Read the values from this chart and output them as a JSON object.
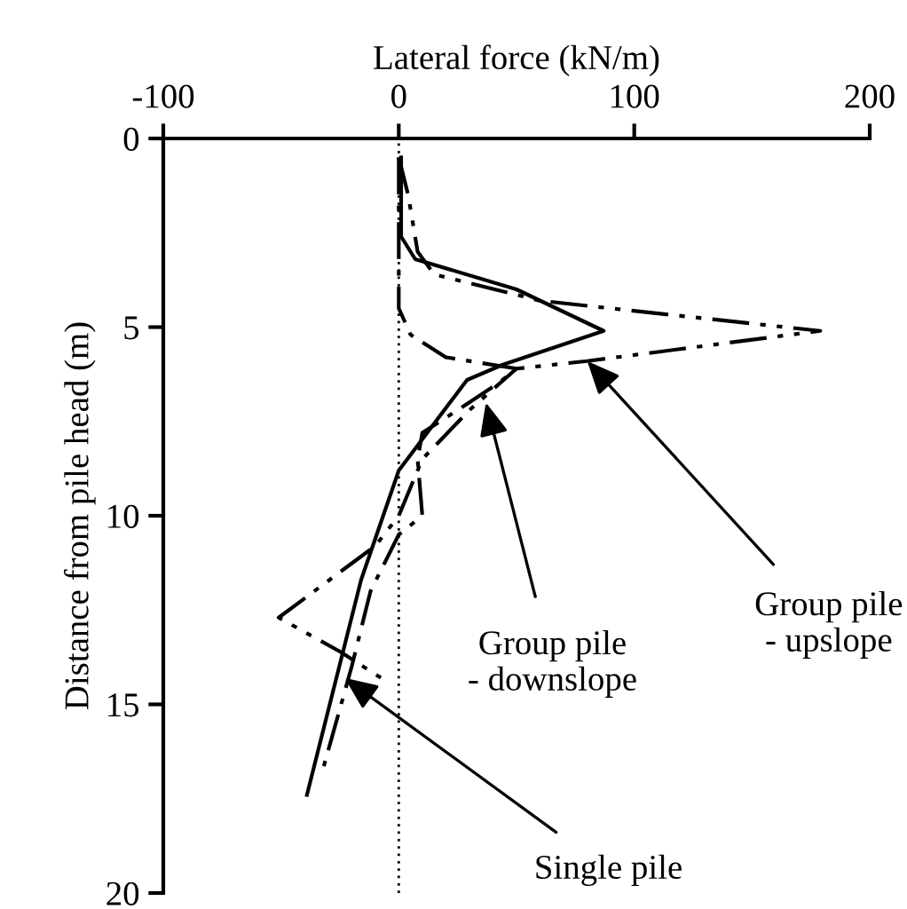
{
  "chart_data": {
    "type": "line",
    "xlabel": "Lateral force (kN/m)",
    "ylabel": "Distance from pile head (m)",
    "xlim": [
      -100,
      200
    ],
    "xticks": [
      -100,
      0,
      100,
      200
    ],
    "ylim": [
      20,
      0
    ],
    "yticks": [
      0,
      5,
      10,
      15,
      20
    ],
    "grid": false,
    "legend": false,
    "ref_lines": [
      {
        "axis": "x",
        "value": 0,
        "label": null,
        "line_style": "dotted",
        "color": "#000000"
      }
    ],
    "series": [
      {
        "color": "#000000",
        "line_style": "solid",
        "x": [
          1,
          1,
          7,
          50,
          87,
          44,
          29,
          0,
          -16,
          -39
        ],
        "values": [
          0.5,
          2.6,
          3.2,
          4.0,
          5.1,
          6.0,
          6.4,
          8.8,
          11.7,
          17.4
        ]
      },
      {
        "color": "#000000",
        "line_style": "dashdotdot",
        "x": [
          0,
          4,
          8,
          15,
          60,
          179,
          80,
          50,
          30,
          10,
          0,
          -10,
          -51,
          -25,
          -5
        ],
        "values": [
          0.5,
          1.5,
          3,
          3.6,
          4.3,
          5.1,
          5.9,
          6.1,
          7.2,
          8.5,
          10,
          10.8,
          12.7,
          13.6,
          14.4
        ]
      },
      {
        "color": "#000000",
        "line_style": "dashdot",
        "x": [
          0,
          0,
          5,
          20,
          50,
          42,
          25,
          10,
          8,
          10,
          0,
          -12,
          -20,
          -33
        ],
        "values": [
          0.5,
          4.5,
          5.2,
          5.8,
          6.1,
          6.5,
          7.2,
          7.8,
          8.5,
          10,
          10.5,
          12,
          14,
          16.9
        ]
      }
    ],
    "annotations": [
      {
        "text": "Group pile\n- upslope",
        "x": 80,
        "y": 5.9
      },
      {
        "text": "Group pile\n- downslope",
        "x": 37,
        "y": 7.0
      },
      {
        "text": "Single pile",
        "x": -23,
        "y": 14.3
      }
    ]
  }
}
